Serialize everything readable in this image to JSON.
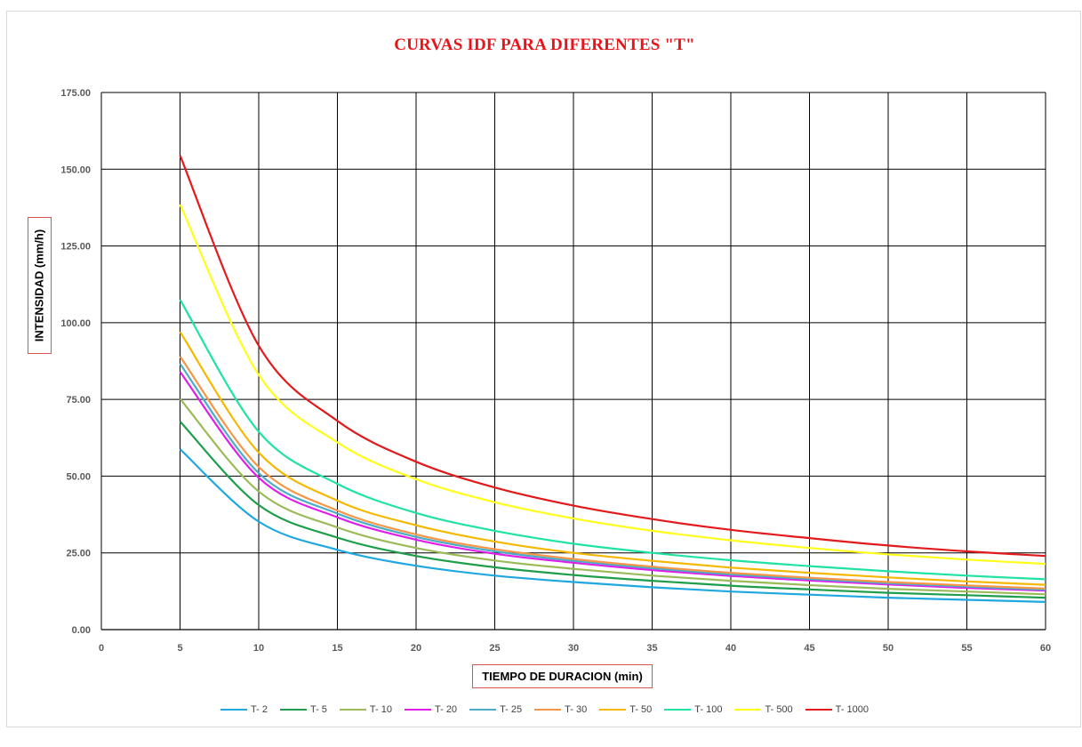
{
  "chart_data": {
    "type": "line",
    "title": "CURVAS IDF PARA DIFERENTES \"T\"",
    "xlabel": "TIEMPO DE DURACION (min)",
    "ylabel": "INTENSIDAD (mm/h)",
    "xlim": [
      0,
      60
    ],
    "ylim": [
      0,
      175
    ],
    "x_ticks": [
      "0",
      "5",
      "10",
      "15",
      "20",
      "25",
      "30",
      "35",
      "40",
      "45",
      "50",
      "55",
      "60"
    ],
    "y_ticks": [
      "0.00",
      "25.00",
      "50.00",
      "75.00",
      "100.00",
      "125.00",
      "150.00",
      "175.00"
    ],
    "grid": true,
    "legend_position": "bottom",
    "x": [
      5,
      10,
      15,
      20,
      25,
      30,
      35,
      40,
      45,
      50,
      55,
      60
    ],
    "series": [
      {
        "name": "T- 2",
        "color": "#1fa7e0",
        "values": [
          58.8,
          35.2,
          26.0,
          20.8,
          17.6,
          15.5,
          13.8,
          12.4,
          11.4,
          10.4,
          9.7,
          9.0
        ]
      },
      {
        "name": "T- 5",
        "color": "#1e9e4a",
        "values": [
          67.8,
          40.6,
          30.0,
          24.0,
          20.3,
          17.8,
          15.9,
          14.3,
          13.1,
          12.0,
          11.2,
          10.4
        ]
      },
      {
        "name": "T- 10",
        "color": "#9bbb59",
        "values": [
          75.2,
          45.0,
          33.3,
          26.6,
          22.5,
          19.8,
          17.6,
          15.9,
          14.5,
          13.3,
          12.4,
          11.5
        ]
      },
      {
        "name": "T- 20",
        "color": "#e11de8",
        "values": [
          84.0,
          49.5,
          36.6,
          29.3,
          24.7,
          21.8,
          19.4,
          17.5,
          16.0,
          14.7,
          13.6,
          12.7
        ]
      },
      {
        "name": "T- 25",
        "color": "#4bacc6",
        "values": [
          86.6,
          51.0,
          37.8,
          30.2,
          25.5,
          22.4,
          20.0,
          18.0,
          16.5,
          15.1,
          14.0,
          13.0
        ]
      },
      {
        "name": "T- 30",
        "color": "#f79646",
        "values": [
          89.0,
          53.0,
          38.8,
          31.0,
          26.2,
          23.0,
          20.5,
          18.5,
          16.9,
          15.5,
          14.4,
          13.4
        ]
      },
      {
        "name": "T- 50",
        "color": "#f5b800",
        "values": [
          97.0,
          57.7,
          42.0,
          34.0,
          28.7,
          25.0,
          22.4,
          20.2,
          18.5,
          17.0,
          15.7,
          14.6
        ]
      },
      {
        "name": "T- 100",
        "color": "#20e3a3",
        "values": [
          107.5,
          64.5,
          47.5,
          38.0,
          32.2,
          28.0,
          25.0,
          22.6,
          20.7,
          19.0,
          17.6,
          16.4
        ]
      },
      {
        "name": "T- 500",
        "color": "#ffff1a",
        "values": [
          138.5,
          83.0,
          61.0,
          49.0,
          41.5,
          36.2,
          32.2,
          29.1,
          26.6,
          24.5,
          22.8,
          21.4
        ]
      },
      {
        "name": "T- 1000",
        "color": "#e31a1c",
        "values": [
          154.5,
          92.5,
          68.0,
          54.7,
          46.3,
          40.4,
          36.0,
          32.5,
          29.8,
          27.4,
          25.5,
          24.0
        ]
      }
    ]
  }
}
